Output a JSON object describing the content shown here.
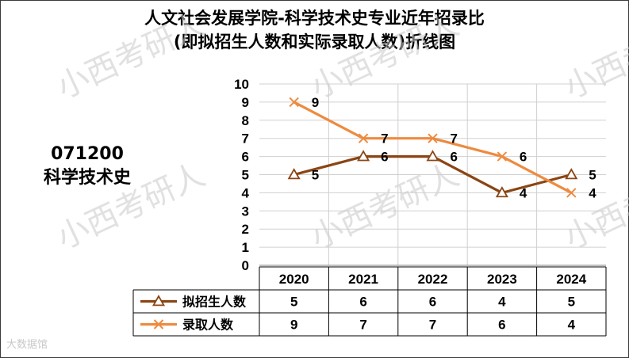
{
  "title_line1": "人文社会发展学院-科学技术史专业近年招录比",
  "title_line2": "(即拟招生人数和实际录取人数)折线图",
  "side_code": "071200",
  "side_name": "科学技术史",
  "watermark": "小西考研人",
  "brand": "大数据馆",
  "colors": {
    "series1": "#8b4513",
    "series2": "#ed8b40",
    "grid": "#d0d0d0",
    "watermark": "#c9c9c9"
  },
  "chart_data": {
    "type": "line",
    "title": "人文社会发展学院-科学技术史专业近年招录比 (即拟招生人数和实际录取人数)折线图",
    "categories": [
      "2020",
      "2021",
      "2022",
      "2023",
      "2024"
    ],
    "ylim": [
      0,
      10
    ],
    "yticks": [
      "0",
      "1",
      "2",
      "3",
      "4",
      "5",
      "6",
      "7",
      "8",
      "9",
      "10"
    ],
    "grid": true,
    "legend": "data table below chart",
    "series": [
      {
        "name": "拟招生人数",
        "values": [
          5,
          6,
          6,
          4,
          5
        ],
        "marker": "triangle"
      },
      {
        "name": "录取人数",
        "values": [
          9,
          7,
          7,
          6,
          4
        ],
        "marker": "x"
      }
    ]
  }
}
